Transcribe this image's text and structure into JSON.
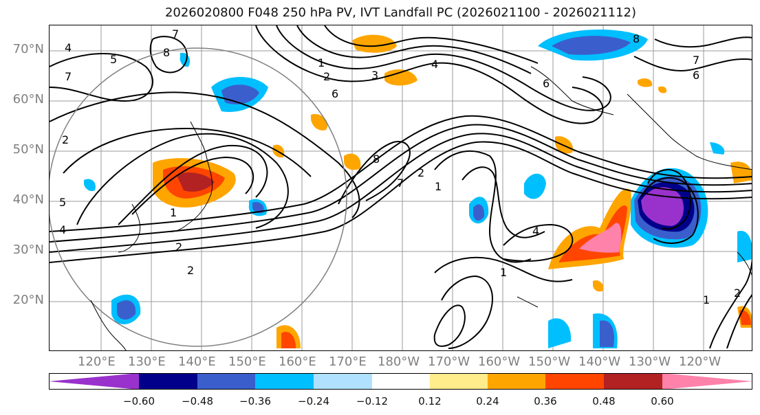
{
  "title": "2026020800 F048 250 hPa PV, IVT Landfall PC (2026021100 - 2026021112)",
  "lat_labels": [
    "70°N",
    "60°N",
    "50°N",
    "40°N",
    "30°N",
    "20°N"
  ],
  "lon_labels": [
    "120°E",
    "130°E",
    "140°E",
    "150°E",
    "160°E",
    "170°E",
    "180°W",
    "170°W",
    "160°W",
    "150°W",
    "140°W",
    "130°W",
    "120°W"
  ],
  "contour_labels": [
    "4",
    "5",
    "7",
    "7",
    "8",
    "2",
    "1",
    "2",
    "3",
    "4",
    "6",
    "8",
    "7",
    "6",
    "5",
    "4",
    "1",
    "2",
    "2",
    "8",
    "1",
    "7",
    "2",
    "6",
    "4",
    "1",
    "1",
    "2"
  ],
  "colorbar": {
    "colors": [
      "#9932cc",
      "#00008b",
      "#3a5fcd",
      "#00bfff",
      "#b0e2ff",
      "#ffffff",
      "#ffec8b",
      "#ffa500",
      "#ff4500",
      "#b22222",
      "#ff82ab"
    ],
    "tick_labels": [
      "−0.60",
      "−0.48",
      "−0.36",
      "−0.24",
      "−0.12",
      "0.12",
      "0.24",
      "0.36",
      "0.48",
      "0.60"
    ]
  }
}
